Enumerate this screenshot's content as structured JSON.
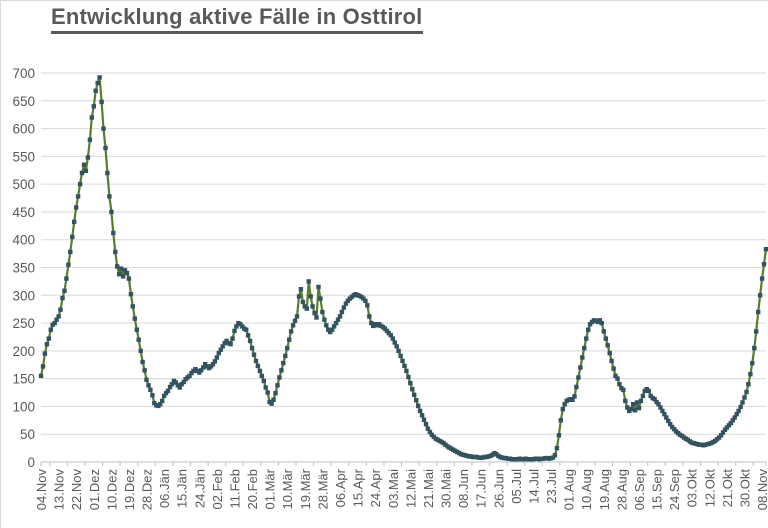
{
  "chart_data": {
    "type": "line",
    "title": "Entwicklung aktive Fälle in Osttirol",
    "xlabel": "",
    "ylabel": "",
    "ylim": [
      0,
      700
    ],
    "y_tick_step": 50,
    "y_ticks": [
      0,
      50,
      100,
      150,
      200,
      250,
      300,
      350,
      400,
      450,
      500,
      550,
      600,
      650,
      700
    ],
    "grid": "horizontal",
    "legend": "none",
    "marker": "square",
    "line_color": "#5a7d2c",
    "marker_color": "#32535f",
    "axis_text_color": "#595959",
    "grid_color": "#d9d9d9",
    "tick_color": "#bfbfbf",
    "x_tick_every_n_points": 9,
    "x_tick_labels": [
      "04.Nov",
      "13.Nov",
      "22.Nov",
      "01.Dez",
      "10.Dez",
      "19.Dez",
      "28.Dez",
      "06.Jän",
      "15.Jän",
      "24.Jän",
      "02.Feb",
      "11.Feb",
      "20.Feb",
      "01.Mär",
      "10.Mär",
      "19.Mär",
      "28.Mär",
      "06.Apr",
      "15.Apr",
      "24.Apr",
      "03.Mai",
      "12.Mai",
      "21.Mai",
      "30.Mai",
      "08.Jun",
      "17.Jun",
      "26.Jun",
      "05.Jul",
      "14.Jul",
      "23.Jul",
      "01.Aug",
      "10.Aug",
      "19.Aug",
      "28.Aug",
      "06.Sep",
      "15.Sep",
      "24.Sep",
      "03.Okt",
      "12.Okt",
      "21.Okt",
      "30.Okt",
      "08.Nov"
    ],
    "values": [
      155,
      172,
      195,
      212,
      222,
      238,
      247,
      250,
      256,
      262,
      274,
      295,
      308,
      330,
      355,
      378,
      405,
      432,
      458,
      478,
      500,
      520,
      535,
      524,
      548,
      580,
      620,
      640,
      668,
      682,
      692,
      648,
      600,
      565,
      520,
      478,
      450,
      412,
      378,
      352,
      338,
      348,
      334,
      345,
      340,
      330,
      302,
      280,
      258,
      238,
      220,
      200,
      180,
      165,
      148,
      138,
      130,
      120,
      106,
      102,
      101,
      104,
      110,
      119,
      124,
      128,
      135,
      140,
      146,
      143,
      138,
      134,
      140,
      144,
      149,
      152,
      155,
      160,
      164,
      167,
      164,
      161,
      165,
      170,
      176,
      172,
      169,
      172,
      176,
      181,
      188,
      196,
      202,
      208,
      214,
      218,
      214,
      212,
      222,
      236,
      244,
      250,
      248,
      244,
      240,
      238,
      228,
      218,
      205,
      193,
      182,
      173,
      164,
      155,
      146,
      134,
      125,
      108,
      105,
      112,
      124,
      138,
      152,
      165,
      178,
      191,
      205,
      220,
      235,
      246,
      254,
      262,
      298,
      311,
      288,
      280,
      276,
      325,
      298,
      280,
      268,
      260,
      315,
      294,
      270,
      256,
      246,
      238,
      234,
      238,
      244,
      250,
      256,
      262,
      270,
      278,
      285,
      290,
      294,
      297,
      300,
      302,
      300,
      299,
      297,
      294,
      290,
      282,
      262,
      250,
      245,
      248,
      246,
      248,
      245,
      243,
      240,
      236,
      232,
      228,
      222,
      215,
      208,
      200,
      191,
      182,
      173,
      164,
      153,
      142,
      131,
      121,
      111,
      101,
      92,
      84,
      76,
      68,
      60,
      54,
      49,
      45,
      42,
      40,
      38,
      36,
      34,
      31,
      28,
      26,
      24,
      22,
      20,
      18,
      16,
      14,
      13,
      12,
      11,
      10,
      10,
      9,
      9,
      9,
      8,
      8,
      8,
      9,
      9,
      10,
      11,
      13,
      16,
      14,
      11,
      9,
      8,
      7,
      7,
      6,
      6,
      5,
      5,
      5,
      5,
      6,
      5,
      5,
      6,
      5,
      5,
      5,
      5,
      6,
      6,
      5,
      6,
      6,
      7,
      7,
      6,
      7,
      8,
      12,
      25,
      48,
      75,
      95,
      104,
      110,
      112,
      113,
      112,
      118,
      135,
      152,
      170,
      188,
      205,
      222,
      238,
      248,
      252,
      255,
      254,
      252,
      255,
      250,
      235,
      222,
      210,
      196,
      182,
      168,
      155,
      150,
      140,
      133,
      130,
      110,
      98,
      92,
      95,
      104,
      93,
      107,
      97,
      110,
      119,
      128,
      131,
      128,
      119,
      115,
      113,
      108,
      104,
      98,
      92,
      86,
      80,
      74,
      68,
      63,
      59,
      55,
      52,
      49,
      47,
      44,
      42,
      40,
      37,
      35,
      34,
      33,
      32,
      31,
      31,
      30,
      31,
      32,
      33,
      34,
      36,
      38,
      41,
      44,
      48,
      53,
      58,
      62,
      66,
      70,
      75,
      80,
      86,
      92,
      99,
      107,
      116,
      126,
      140,
      158,
      178,
      205,
      235,
      270,
      300,
      330,
      356,
      383
    ]
  }
}
